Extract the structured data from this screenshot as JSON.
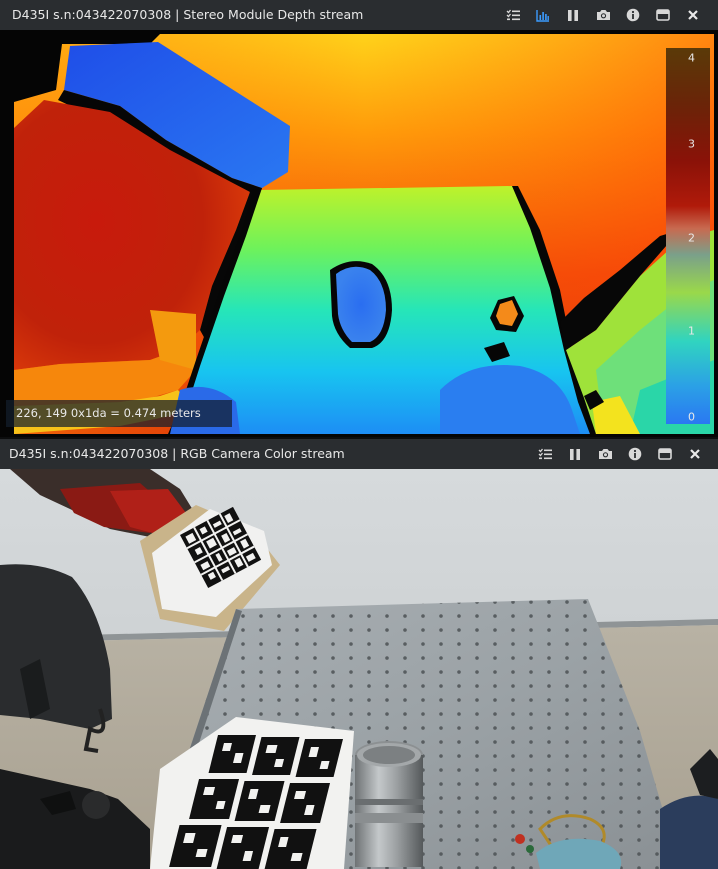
{
  "depth_window": {
    "title": "D435I s.n:043422070308 | Stereo Module Depth stream",
    "toolbar_icons": [
      "list-check-icon",
      "histogram-icon",
      "pause-icon",
      "camera-icon",
      "info-icon",
      "minimize-icon",
      "close-icon"
    ],
    "readout": "226, 149 0x1da = 0.474 meters",
    "colorbar": {
      "ticks": [
        "4",
        "3",
        "2",
        "1",
        "0"
      ]
    },
    "colors": {
      "active_icon": "#3b9cff",
      "icon": "#d8d8d8",
      "titlebar": "#2a2d30"
    }
  },
  "color_window": {
    "title": "D435I s.n:043422070308 | RGB Camera Color stream",
    "toolbar_icons": [
      "list-check-icon",
      "pause-icon",
      "camera-icon",
      "info-icon",
      "minimize-icon",
      "close-icon"
    ]
  }
}
